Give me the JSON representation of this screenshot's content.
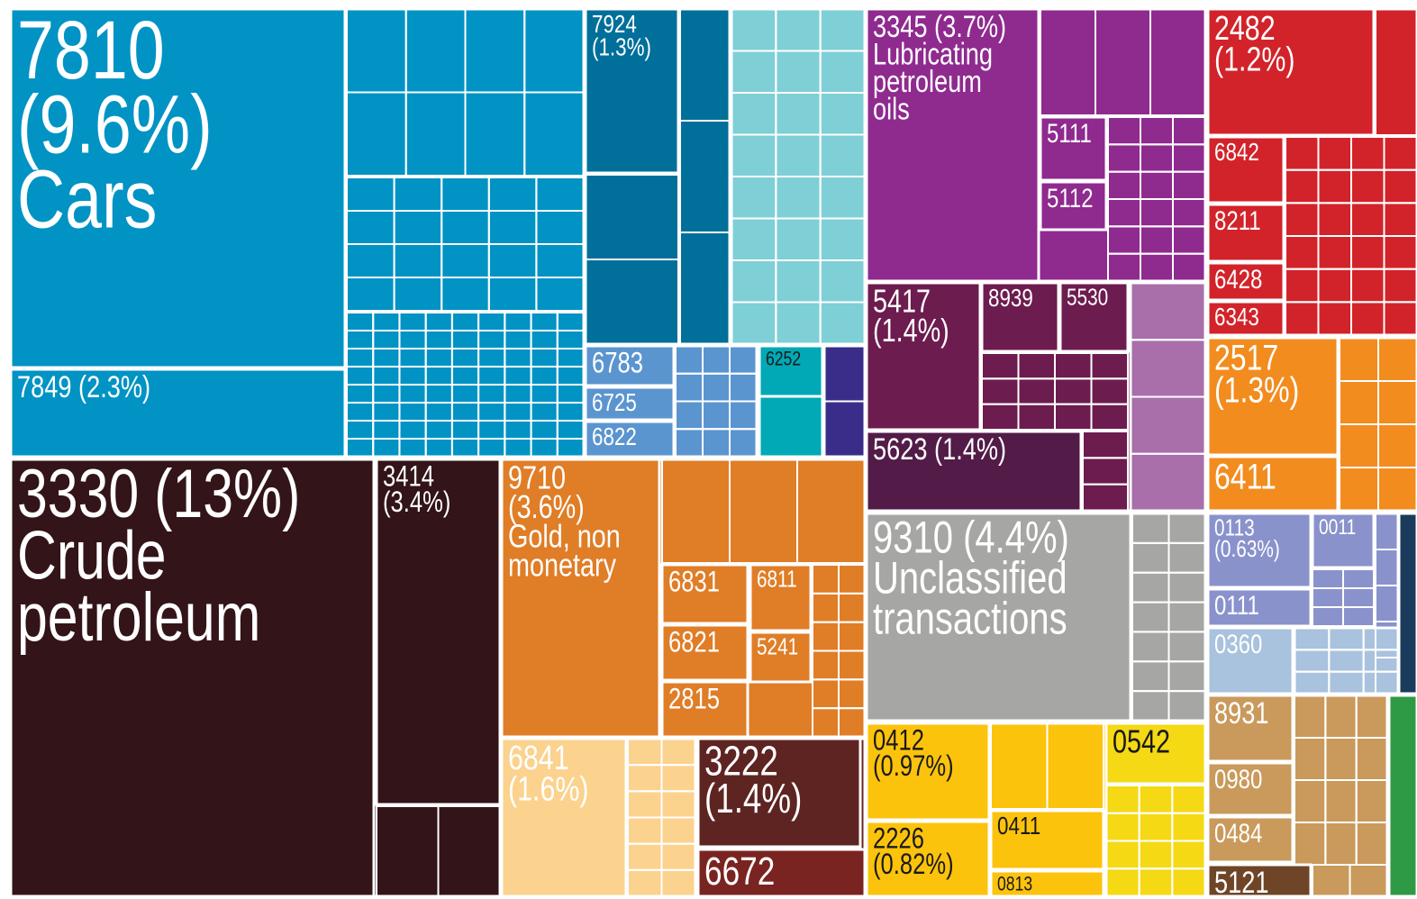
{
  "chart_data": {
    "type": "treemap",
    "tiles": [
      {
        "code": "7810",
        "value": 9.6,
        "value_label": "(9.6%)",
        "name": "Cars",
        "color": "#0093c4"
      },
      {
        "code": "7849",
        "value": 2.3,
        "value_label": "(2.3%)",
        "color": "#0093c4"
      },
      {
        "code": "7924",
        "value": 1.3,
        "value_label": "(1.3%)",
        "color": "#006f9a"
      },
      {
        "code": "6783",
        "value": 0.27,
        "color": "#5b95cf"
      },
      {
        "code": "6725",
        "value": 0.22,
        "color": "#5b95cf"
      },
      {
        "code": "6822",
        "value": 0.24,
        "color": "#5b95cf"
      },
      {
        "code": "6252",
        "value": 0.25,
        "color": "#00a9b5"
      },
      {
        "code": "3330",
        "value": 13,
        "value_label": "(13%)",
        "name": "Crude petroleum",
        "color": "#331418"
      },
      {
        "code": "3414",
        "value": 3.4,
        "value_label": "(3.4%)",
        "color": "#331418"
      },
      {
        "code": "9710",
        "value": 3.6,
        "value_label": "(3.6%)",
        "name": "Gold, non monetary",
        "color": "#e07d27"
      },
      {
        "code": "6831",
        "value": 0.39,
        "color": "#e07d27"
      },
      {
        "code": "6821",
        "value": 0.37,
        "color": "#e07d27"
      },
      {
        "code": "2815",
        "value": 0.37,
        "color": "#e07d27"
      },
      {
        "code": "6811",
        "value": 0.31,
        "color": "#e07d27"
      },
      {
        "code": "5241",
        "value": 0.23,
        "color": "#e07d27"
      },
      {
        "code": "6841",
        "value": 1.6,
        "value_label": "(1.6%)",
        "color": "#fbd28e"
      },
      {
        "code": "3222",
        "value": 1.4,
        "value_label": "(1.4%)",
        "color": "#5e2422"
      },
      {
        "code": "6672",
        "value": 0.61,
        "color": "#7a2421"
      },
      {
        "code": "3345",
        "value": 3.7,
        "value_label": "(3.7%)",
        "name": "Lubricating petroleum oils",
        "color": "#8f2a8f"
      },
      {
        "code": "5111",
        "value": 0.32,
        "color": "#8f2a8f"
      },
      {
        "code": "5112",
        "value": 0.25,
        "color": "#8f2a8f"
      },
      {
        "code": "5417",
        "value": 1.4,
        "value_label": "(1.4%)",
        "color": "#6d1c4f"
      },
      {
        "code": "8939",
        "value": 0.41,
        "color": "#6d1c4f"
      },
      {
        "code": "5530",
        "value": 0.36,
        "color": "#6d1c4f"
      },
      {
        "code": "5623",
        "value": 1.4,
        "value_label": "(1.4%)",
        "color": "#521b48"
      },
      {
        "code": "9310",
        "value": 4.4,
        "value_label": "(4.4%)",
        "name": "Unclassified transactions",
        "color": "#a6a6a4"
      },
      {
        "code": "0412",
        "value": 0.97,
        "value_label": "(0.97%)",
        "color": "#fcc30d"
      },
      {
        "code": "2226",
        "value": 0.82,
        "value_label": "(0.82%)",
        "color": "#fcc30d"
      },
      {
        "code": "0411",
        "value": 0.52,
        "color": "#fcc30d"
      },
      {
        "code": "0813",
        "value": 0.22,
        "color": "#fcc30d"
      },
      {
        "code": "0542",
        "value": 0.47,
        "color": "#f4d914"
      },
      {
        "code": "2482",
        "value": 1.2,
        "value_label": "(1.2%)",
        "color": "#d2232a"
      },
      {
        "code": "6842",
        "value": 0.39,
        "color": "#d2232a"
      },
      {
        "code": "8211",
        "value": 0.34,
        "color": "#d2232a"
      },
      {
        "code": "6428",
        "value": 0.22,
        "color": "#d2232a"
      },
      {
        "code": "6343",
        "value": 0.2,
        "color": "#d2232a"
      },
      {
        "code": "2517",
        "value": 1.3,
        "value_label": "(1.3%)",
        "color": "#f28c1f"
      },
      {
        "code": "6411",
        "value": 0.55,
        "color": "#f28c1f"
      },
      {
        "code": "0113",
        "value": 0.63,
        "value_label": "(0.63%)",
        "color": "#8a92cc"
      },
      {
        "code": "0011",
        "value": 0.26,
        "color": "#8a92cc"
      },
      {
        "code": "0111",
        "value": 0.3,
        "color": "#8a92cc"
      },
      {
        "code": "0360",
        "value": 0.44,
        "color": "#a9c2dd"
      },
      {
        "code": "8931",
        "value": 0.44,
        "color": "#c99a5c"
      },
      {
        "code": "0980",
        "value": 0.35,
        "color": "#c99a5c"
      },
      {
        "code": "0484",
        "value": 0.3,
        "color": "#c99a5c"
      },
      {
        "code": "5121",
        "value": 0.25,
        "color": "#6e4527"
      }
    ]
  }
}
